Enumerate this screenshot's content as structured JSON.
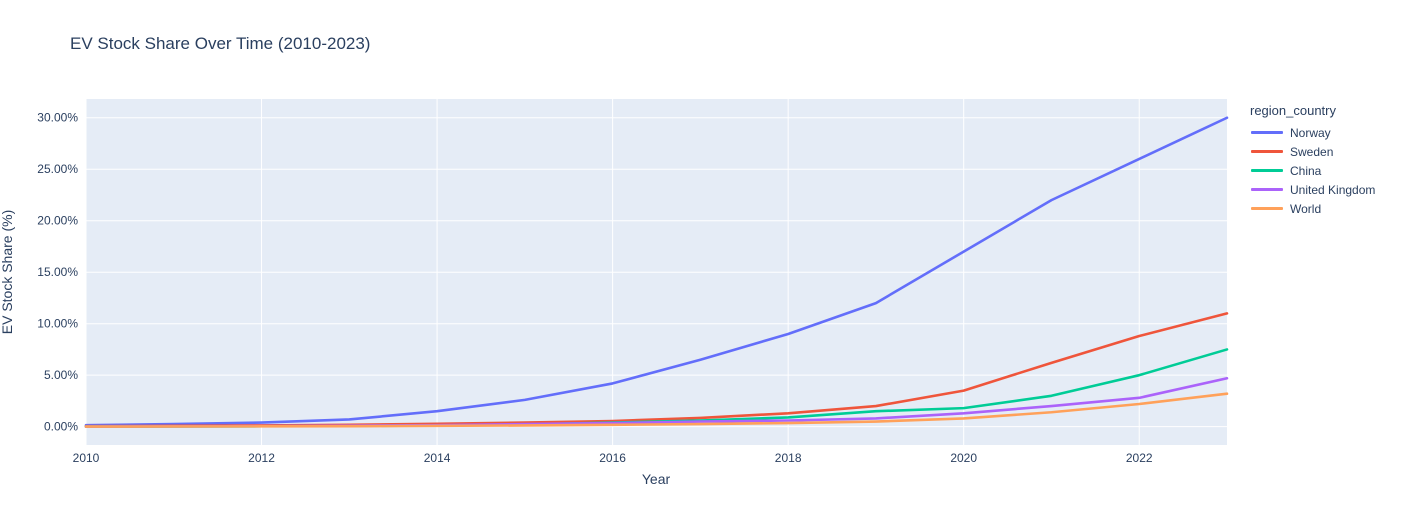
{
  "chart_data": {
    "type": "line",
    "title": "EV Stock Share Over Time (2010-2023)",
    "xlabel": "Year",
    "ylabel": "EV Stock Share (%)",
    "legend_title": "region_country",
    "x": [
      2010,
      2011,
      2012,
      2013,
      2014,
      2015,
      2016,
      2017,
      2018,
      2019,
      2020,
      2021,
      2022,
      2023
    ],
    "series": [
      {
        "name": "Norway",
        "color": "#636efa",
        "values": [
          0.15,
          0.25,
          0.4,
          0.7,
          1.5,
          2.6,
          4.2,
          6.5,
          9.0,
          12.0,
          17.0,
          22.0,
          26.0,
          30.0
        ]
      },
      {
        "name": "Sweden",
        "color": "#ef553b",
        "values": [
          0.05,
          0.08,
          0.12,
          0.18,
          0.28,
          0.4,
          0.55,
          0.85,
          1.3,
          2.0,
          3.5,
          6.2,
          8.8,
          11.0
        ]
      },
      {
        "name": "China",
        "color": "#00cc96",
        "values": [
          0.01,
          0.02,
          0.04,
          0.07,
          0.12,
          0.2,
          0.4,
          0.6,
          0.9,
          1.5,
          1.8,
          3.0,
          5.0,
          7.5
        ]
      },
      {
        "name": "United Kingdom",
        "color": "#ab63fa",
        "values": [
          0.01,
          0.03,
          0.05,
          0.1,
          0.15,
          0.25,
          0.35,
          0.5,
          0.6,
          0.8,
          1.3,
          2.0,
          2.8,
          4.7
        ]
      },
      {
        "name": "World",
        "color": "#ffa15a",
        "values": [
          0.01,
          0.02,
          0.03,
          0.05,
          0.08,
          0.12,
          0.18,
          0.25,
          0.35,
          0.5,
          0.8,
          1.4,
          2.2,
          3.2
        ]
      }
    ],
    "xticks": {
      "values": [
        2010,
        2012,
        2014,
        2016,
        2018,
        2020,
        2022
      ],
      "labels": [
        "2010",
        "2012",
        "2014",
        "2016",
        "2018",
        "2020",
        "2022"
      ]
    },
    "yticks": {
      "values": [
        0,
        5,
        10,
        15,
        20,
        25,
        30
      ],
      "labels": [
        "0.00%",
        "5.00%",
        "10.00%",
        "15.00%",
        "20.00%",
        "25.00%",
        "30.00%"
      ]
    },
    "xlim": [
      2010,
      2023
    ],
    "ylim": [
      -1.78,
      31.82
    ],
    "grid": true,
    "legend_position": "right",
    "line_width": 2.6,
    "colors": {
      "plot_bg": "#e5ecf6",
      "grid": "#ffffff",
      "text": "#2a3f5f"
    }
  }
}
